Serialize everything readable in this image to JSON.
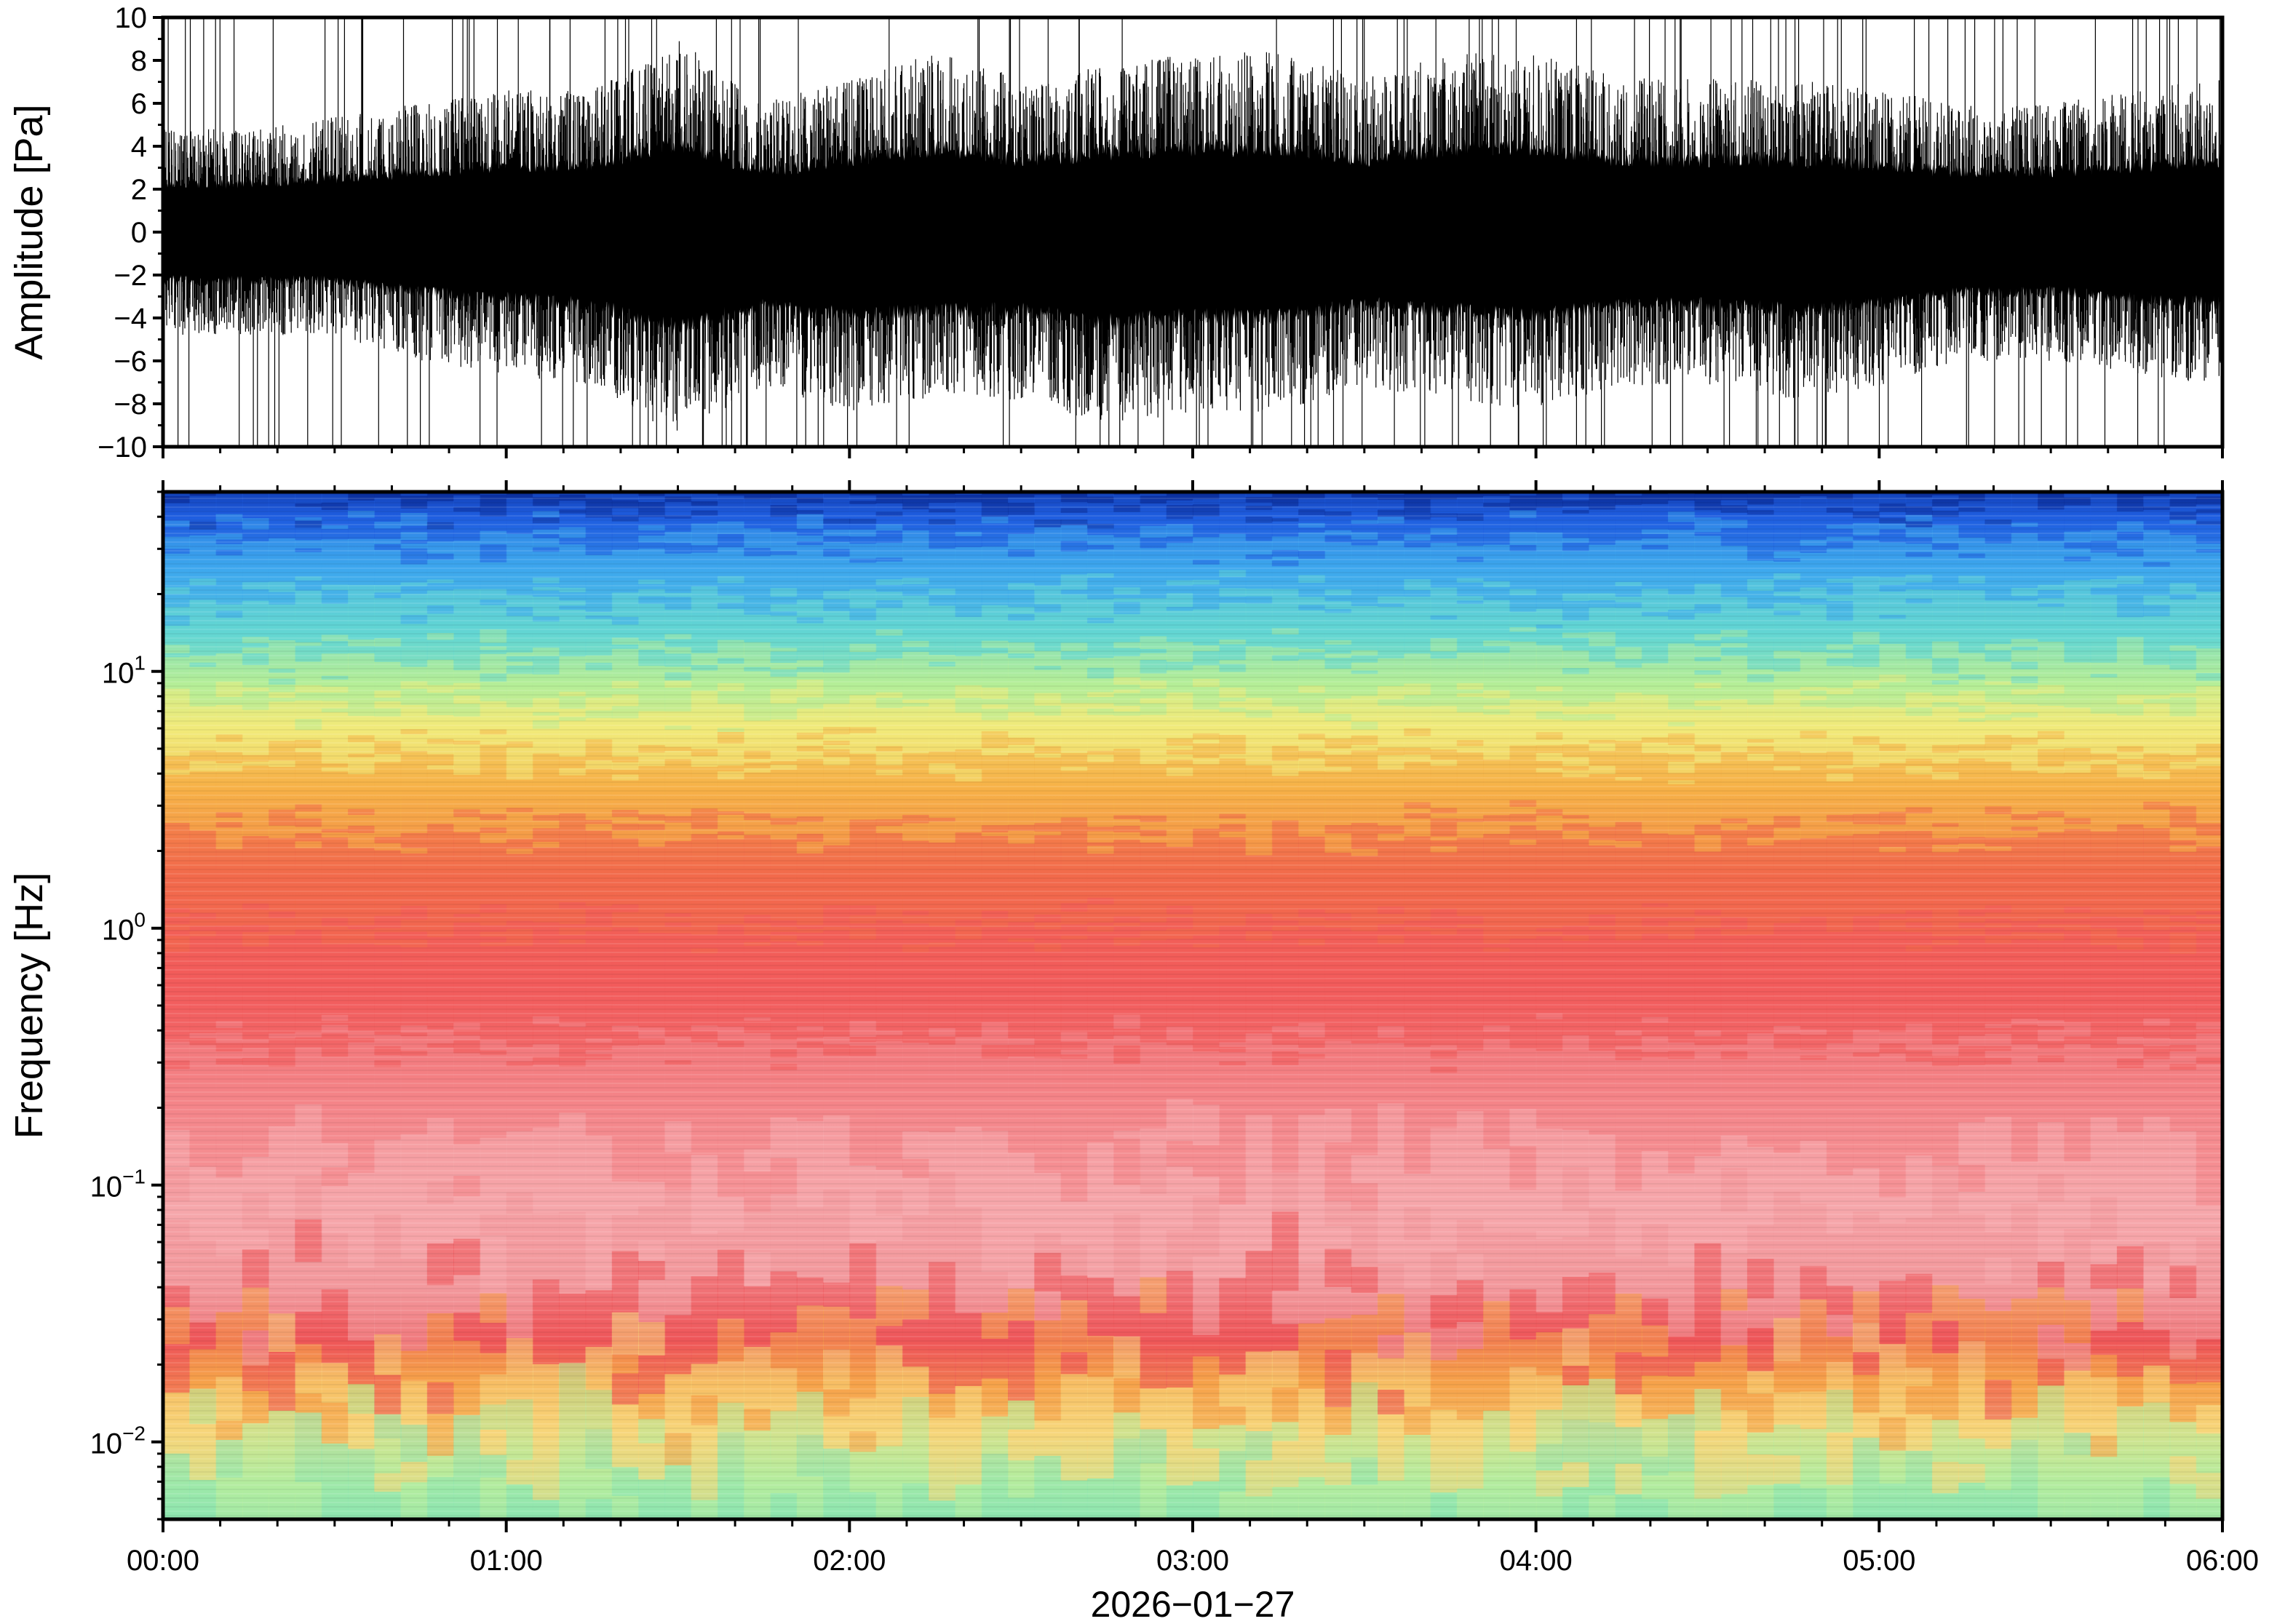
{
  "chart_data": [
    {
      "type": "line",
      "ylabel": "Amplitude [Pa]",
      "ylim": [
        -10,
        10
      ],
      "yticks": [
        "10",
        "8",
        "6",
        "4",
        "2",
        "0",
        "−2",
        "−4",
        "−6",
        "−8",
        "−10"
      ],
      "ytick_values": [
        10,
        8,
        6,
        4,
        2,
        0,
        -2,
        -4,
        -6,
        -8,
        -10
      ],
      "x_range": [
        "00:00",
        "06:00"
      ],
      "series": [
        {
          "values_hours": [
            0,
            0.25,
            0.5,
            0.75,
            1,
            1.25,
            1.5,
            1.75,
            2,
            2.25,
            2.5,
            2.75,
            3,
            3.25,
            3.5,
            3.75,
            4,
            4.25,
            4.5,
            4.75,
            5,
            5.25,
            5.5,
            5.75,
            6
          ],
          "envelope_upper": [
            4,
            4,
            4.5,
            5,
            5.5,
            5.5,
            7.5,
            5,
            6,
            7,
            6,
            6.5,
            7,
            7,
            6,
            7,
            7,
            6,
            6,
            6,
            5.5,
            5,
            5,
            5.5,
            6
          ],
          "envelope_lower": [
            -4,
            -4,
            -4,
            -5,
            -5.5,
            -6,
            -8,
            -6,
            -7,
            -6.5,
            -6.5,
            -7.5,
            -7,
            -7,
            -6,
            -6.5,
            -7,
            -6,
            -6,
            -6.5,
            -6,
            -5,
            -5,
            -5.5,
            -6
          ]
        }
      ],
      "grid": false
    },
    {
      "type": "heatmap",
      "ylabel": "Frequency [Hz]",
      "yscale": "log",
      "ylim": [
        0.005,
        50
      ],
      "ytick_bases": [
        "10",
        "10",
        "10",
        "10"
      ],
      "ytick_exponents": [
        "1",
        "0",
        "−1",
        "−2"
      ],
      "ytick_values": [
        10,
        1,
        0.1,
        0.01
      ],
      "xlabel": "2026−01−27",
      "xticks": [
        "00:00",
        "01:00",
        "02:00",
        "03:00",
        "04:00",
        "05:00",
        "06:00"
      ],
      "xtick_hours": [
        0,
        1,
        2,
        3,
        4,
        5,
        6
      ],
      "colormap": "rainbow (blue = low power, yellow/green at lowest frequencies, red/pink mid band)",
      "band_profile": [
        {
          "freq_hz": 50,
          "color": "#0a2d9a"
        },
        {
          "freq_hz": 40,
          "color": "#1f5ee0"
        },
        {
          "freq_hz": 25,
          "color": "#3ea8ee"
        },
        {
          "freq_hz": 14,
          "color": "#63d6d3"
        },
        {
          "freq_hz": 9,
          "color": "#b4ee98"
        },
        {
          "freq_hz": 6,
          "color": "#f1ea7a"
        },
        {
          "freq_hz": 3.5,
          "color": "#f7b148"
        },
        {
          "freq_hz": 1.6,
          "color": "#f26a4c"
        },
        {
          "freq_hz": 0.6,
          "color": "#f25c5c"
        },
        {
          "freq_hz": 0.2,
          "color": "#f4868a"
        },
        {
          "freq_hz": 0.08,
          "color": "#f6a7ab"
        },
        {
          "freq_hz": 0.04,
          "color": "#f3999d"
        },
        {
          "freq_hz": 0.025,
          "color": "#ee5659"
        },
        {
          "freq_hz": 0.017,
          "color": "#f5a24a"
        },
        {
          "freq_hz": 0.011,
          "color": "#f7d67a"
        },
        {
          "freq_hz": 0.007,
          "color": "#b4ec9e"
        },
        {
          "freq_hz": 0.005,
          "color": "#8ee5b0"
        }
      ],
      "grid": false
    }
  ]
}
